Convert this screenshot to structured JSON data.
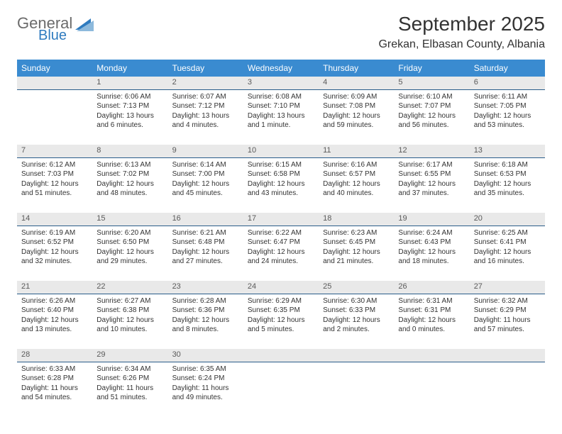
{
  "logo": {
    "word1": "General",
    "word2": "Blue",
    "triangle_color": "#2f7bbf"
  },
  "title": "September 2025",
  "location": "Grekan, Elbasan County, Albania",
  "header_bg": "#3a8bd0",
  "header_fg": "#ffffff",
  "daynum_bg": "#e9e9e9",
  "daynum_border": "#2a5d8a",
  "dow": [
    "Sunday",
    "Monday",
    "Tuesday",
    "Wednesday",
    "Thursday",
    "Friday",
    "Saturday"
  ],
  "weeks": [
    {
      "nums": [
        "",
        "1",
        "2",
        "3",
        "4",
        "5",
        "6"
      ],
      "cells": [
        null,
        {
          "sunrise": "6:06 AM",
          "sunset": "7:13 PM",
          "daylight": "13 hours and 6 minutes."
        },
        {
          "sunrise": "6:07 AM",
          "sunset": "7:12 PM",
          "daylight": "13 hours and 4 minutes."
        },
        {
          "sunrise": "6:08 AM",
          "sunset": "7:10 PM",
          "daylight": "13 hours and 1 minute."
        },
        {
          "sunrise": "6:09 AM",
          "sunset": "7:08 PM",
          "daylight": "12 hours and 59 minutes."
        },
        {
          "sunrise": "6:10 AM",
          "sunset": "7:07 PM",
          "daylight": "12 hours and 56 minutes."
        },
        {
          "sunrise": "6:11 AM",
          "sunset": "7:05 PM",
          "daylight": "12 hours and 53 minutes."
        }
      ]
    },
    {
      "nums": [
        "7",
        "8",
        "9",
        "10",
        "11",
        "12",
        "13"
      ],
      "cells": [
        {
          "sunrise": "6:12 AM",
          "sunset": "7:03 PM",
          "daylight": "12 hours and 51 minutes."
        },
        {
          "sunrise": "6:13 AM",
          "sunset": "7:02 PM",
          "daylight": "12 hours and 48 minutes."
        },
        {
          "sunrise": "6:14 AM",
          "sunset": "7:00 PM",
          "daylight": "12 hours and 45 minutes."
        },
        {
          "sunrise": "6:15 AM",
          "sunset": "6:58 PM",
          "daylight": "12 hours and 43 minutes."
        },
        {
          "sunrise": "6:16 AM",
          "sunset": "6:57 PM",
          "daylight": "12 hours and 40 minutes."
        },
        {
          "sunrise": "6:17 AM",
          "sunset": "6:55 PM",
          "daylight": "12 hours and 37 minutes."
        },
        {
          "sunrise": "6:18 AM",
          "sunset": "6:53 PM",
          "daylight": "12 hours and 35 minutes."
        }
      ]
    },
    {
      "nums": [
        "14",
        "15",
        "16",
        "17",
        "18",
        "19",
        "20"
      ],
      "cells": [
        {
          "sunrise": "6:19 AM",
          "sunset": "6:52 PM",
          "daylight": "12 hours and 32 minutes."
        },
        {
          "sunrise": "6:20 AM",
          "sunset": "6:50 PM",
          "daylight": "12 hours and 29 minutes."
        },
        {
          "sunrise": "6:21 AM",
          "sunset": "6:48 PM",
          "daylight": "12 hours and 27 minutes."
        },
        {
          "sunrise": "6:22 AM",
          "sunset": "6:47 PM",
          "daylight": "12 hours and 24 minutes."
        },
        {
          "sunrise": "6:23 AM",
          "sunset": "6:45 PM",
          "daylight": "12 hours and 21 minutes."
        },
        {
          "sunrise": "6:24 AM",
          "sunset": "6:43 PM",
          "daylight": "12 hours and 18 minutes."
        },
        {
          "sunrise": "6:25 AM",
          "sunset": "6:41 PM",
          "daylight": "12 hours and 16 minutes."
        }
      ]
    },
    {
      "nums": [
        "21",
        "22",
        "23",
        "24",
        "25",
        "26",
        "27"
      ],
      "cells": [
        {
          "sunrise": "6:26 AM",
          "sunset": "6:40 PM",
          "daylight": "12 hours and 13 minutes."
        },
        {
          "sunrise": "6:27 AM",
          "sunset": "6:38 PM",
          "daylight": "12 hours and 10 minutes."
        },
        {
          "sunrise": "6:28 AM",
          "sunset": "6:36 PM",
          "daylight": "12 hours and 8 minutes."
        },
        {
          "sunrise": "6:29 AM",
          "sunset": "6:35 PM",
          "daylight": "12 hours and 5 minutes."
        },
        {
          "sunrise": "6:30 AM",
          "sunset": "6:33 PM",
          "daylight": "12 hours and 2 minutes."
        },
        {
          "sunrise": "6:31 AM",
          "sunset": "6:31 PM",
          "daylight": "12 hours and 0 minutes."
        },
        {
          "sunrise": "6:32 AM",
          "sunset": "6:29 PM",
          "daylight": "11 hours and 57 minutes."
        }
      ]
    },
    {
      "nums": [
        "28",
        "29",
        "30",
        "",
        "",
        "",
        ""
      ],
      "cells": [
        {
          "sunrise": "6:33 AM",
          "sunset": "6:28 PM",
          "daylight": "11 hours and 54 minutes."
        },
        {
          "sunrise": "6:34 AM",
          "sunset": "6:26 PM",
          "daylight": "11 hours and 51 minutes."
        },
        {
          "sunrise": "6:35 AM",
          "sunset": "6:24 PM",
          "daylight": "11 hours and 49 minutes."
        },
        null,
        null,
        null,
        null
      ]
    }
  ],
  "labels": {
    "sunrise": "Sunrise:",
    "sunset": "Sunset:",
    "daylight": "Daylight:"
  }
}
